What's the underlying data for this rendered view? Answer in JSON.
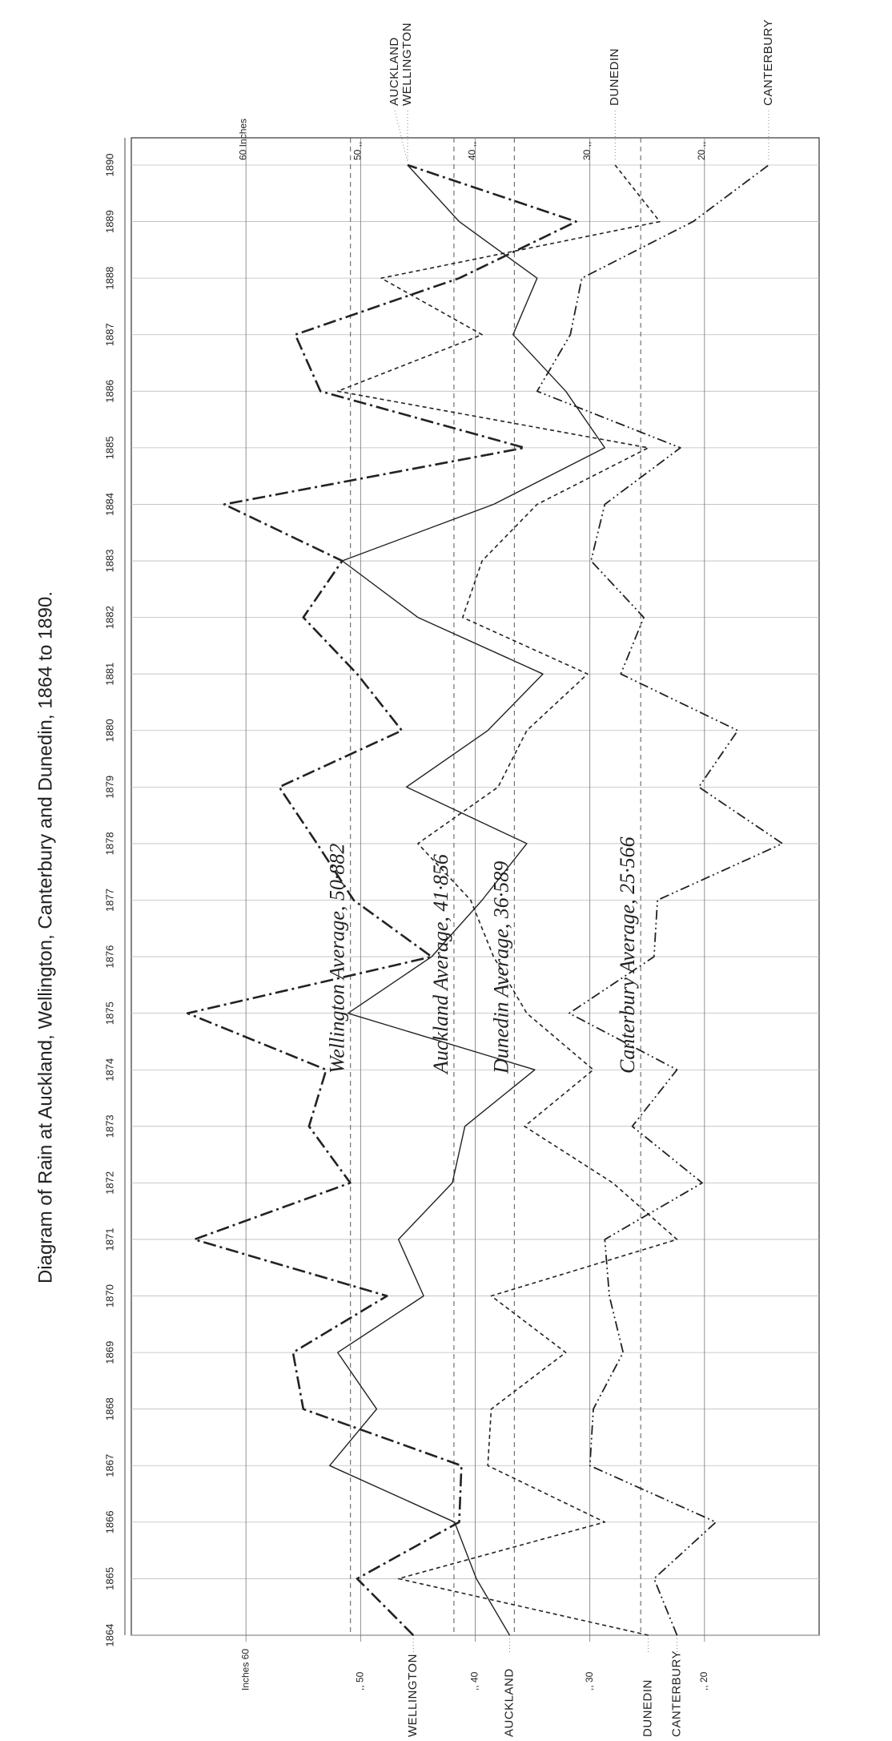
{
  "chart_data": {
    "type": "line",
    "title": "Diagram of Rain at Auckland, Wellington, Canterbury and Dunedin, 1864 to 1890.",
    "x": [
      1864,
      1865,
      1866,
      1867,
      1868,
      1869,
      1870,
      1871,
      1872,
      1873,
      1874,
      1875,
      1876,
      1877,
      1878,
      1879,
      1880,
      1881,
      1882,
      1883,
      1884,
      1885,
      1886,
      1887,
      1888,
      1889,
      1890
    ],
    "xlim": [
      1864,
      1890
    ],
    "ylim": [
      10,
      70
    ],
    "yticks": [
      {
        "value": 60,
        "label": "60 Inches"
      },
      {
        "value": 50,
        "label": "50 ,,"
      },
      {
        "value": 40,
        "label": "40 ,,"
      },
      {
        "value": 30,
        "label": "30 ,,"
      },
      {
        "value": 20,
        "label": "20 ,,"
      }
    ],
    "bottom_ticks": [
      {
        "value": 60,
        "label": "Inches 60"
      },
      {
        "value": 50,
        "label": ",, 50"
      },
      {
        "value": 40,
        "label": ",, 40"
      },
      {
        "value": 30,
        "label": ",, 30"
      },
      {
        "value": 20,
        "label": ",, 20"
      }
    ],
    "grid": true,
    "series": [
      {
        "name": "AUCKLAND",
        "color": "#222222",
        "dash": "solid",
        "average": 41.856,
        "average_label": "Auckland Average, 41·856",
        "values": [
          37.0,
          39.9,
          41.8,
          52.7,
          48.6,
          52.0,
          44.5,
          46.7,
          42.0,
          40.9,
          34.8,
          51.1,
          43.8,
          39.4,
          35.5,
          46.0,
          38.9,
          34.1,
          45.0,
          51.6,
          38.4,
          28.7,
          32.1,
          36.7,
          34.6,
          41.4,
          45.9
        ]
      },
      {
        "name": "WELLINGTON",
        "color": "#222222",
        "dash": "dash-dot",
        "average": 50.882,
        "average_label": "Wellington Average, 50·882",
        "values": [
          45.4,
          50.3,
          41.4,
          41.2,
          55.0,
          55.9,
          47.7,
          64.5,
          50.9,
          54.5,
          53.0,
          65.1,
          43.8,
          50.6,
          53.8,
          57.1,
          46.4,
          50.3,
          55.0,
          51.6,
          61.9,
          35.7,
          53.5,
          55.7,
          41.4,
          31.2,
          45.9
        ]
      },
      {
        "name": "DUNEDIN",
        "color": "#222222",
        "dash": "dash-cross",
        "average": 36.589,
        "average_label": "Dunedin Average, 36·589",
        "values": [
          24.9,
          46.7,
          28.7,
          38.9,
          38.6,
          32.1,
          38.6,
          22.4,
          28.0,
          35.7,
          29.7,
          35.5,
          38.4,
          40.4,
          45.0,
          38.0,
          35.5,
          30.2,
          41.1,
          39.4,
          34.6,
          24.9,
          52.0,
          39.4,
          48.2,
          23.9,
          27.8
        ]
      },
      {
        "name": "CANTERBURY",
        "color": "#222222",
        "dash": "dash-dot-dot",
        "average": 25.566,
        "average_label": "Canterbury Average, 25·566",
        "values": [
          22.4,
          24.4,
          19.0,
          30.0,
          29.7,
          27.1,
          28.3,
          28.7,
          20.2,
          26.3,
          22.4,
          31.8,
          24.4,
          24.1,
          13.2,
          20.5,
          17.1,
          27.3,
          25.3,
          29.9,
          28.7,
          22.1,
          34.6,
          31.7,
          30.7,
          21.0,
          14.4
        ]
      }
    ]
  }
}
